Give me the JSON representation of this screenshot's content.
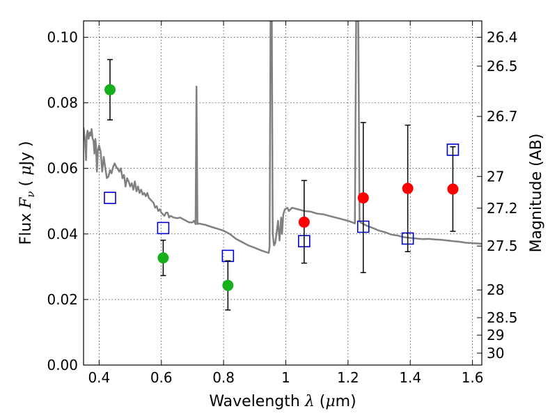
{
  "chart_data": {
    "type": "scatter",
    "xlabel": {
      "prefix": "Wavelength  ",
      "lambda": "λ",
      "unit_open": " (",
      "mu": "μ",
      "unit_close": "m)"
    },
    "ylabel": {
      "prefix": "Flux  ",
      "F": "F",
      "nu": "ν",
      "unit_open": "  ( ",
      "mu": "μ",
      "unit_close": "Jy )"
    },
    "y2label": "Magnitude (AB)",
    "xlim": [
      0.35,
      1.63
    ],
    "ylim": [
      0.0,
      0.105
    ],
    "grid": true,
    "grid_style": "dotted",
    "xticks": [
      {
        "v": 0.4,
        "label": "0.4"
      },
      {
        "v": 0.6,
        "label": "0.6"
      },
      {
        "v": 0.8,
        "label": "0.8"
      },
      {
        "v": 1.0,
        "label": "1"
      },
      {
        "v": 1.2,
        "label": "1.2"
      },
      {
        "v": 1.4,
        "label": "1.4"
      },
      {
        "v": 1.6,
        "label": "1.6"
      }
    ],
    "yticks": [
      {
        "v": 0.0,
        "label": "0.00"
      },
      {
        "v": 0.02,
        "label": "0.02"
      },
      {
        "v": 0.04,
        "label": "0.04"
      },
      {
        "v": 0.06,
        "label": "0.06"
      },
      {
        "v": 0.08,
        "label": "0.08"
      },
      {
        "v": 0.1,
        "label": "0.10"
      }
    ],
    "y2ticks": [
      {
        "label": "26.4",
        "mag": 26.4
      },
      {
        "label": "26.5",
        "mag": 26.5
      },
      {
        "label": "26.7",
        "mag": 26.7
      },
      {
        "label": "27",
        "mag": 27.0
      },
      {
        "label": "27.2",
        "mag": 27.2
      },
      {
        "label": "27.5",
        "mag": 27.5
      },
      {
        "label": "28",
        "mag": 28.0
      },
      {
        "label": "28.5",
        "mag": 28.5
      },
      {
        "label": "29",
        "mag": 29.0
      },
      {
        "label": "30",
        "mag": 30.0
      }
    ],
    "colors": {
      "model": "#808080",
      "green": "#15b01a",
      "red": "#ff0000",
      "box": "#0000cc",
      "errorbar": "#000000"
    },
    "series": [
      {
        "kind": "points",
        "color": "green",
        "points": [
          {
            "x": 0.435,
            "y": 0.084,
            "ylo": 0.0748,
            "yhi": 0.0932
          },
          {
            "x": 0.606,
            "y": 0.0327,
            "ylo": 0.0273,
            "yhi": 0.0381
          },
          {
            "x": 0.814,
            "y": 0.0243,
            "ylo": 0.0168,
            "yhi": 0.0318
          }
        ]
      },
      {
        "kind": "points",
        "color": "red",
        "points": [
          {
            "x": 1.059,
            "y": 0.0436,
            "ylo": 0.0311,
            "yhi": 0.0563
          },
          {
            "x": 1.249,
            "y": 0.051,
            "ylo": 0.0282,
            "yhi": 0.074
          },
          {
            "x": 1.392,
            "y": 0.0539,
            "ylo": 0.0346,
            "yhi": 0.0732
          },
          {
            "x": 1.537,
            "y": 0.0537,
            "ylo": 0.0408,
            "yhi": 0.0666
          }
        ]
      },
      {
        "kind": "model-photometry",
        "color": "box",
        "points": [
          {
            "x": 0.435,
            "y": 0.051
          },
          {
            "x": 0.606,
            "y": 0.0418
          },
          {
            "x": 0.814,
            "y": 0.0333
          },
          {
            "x": 1.059,
            "y": 0.0378
          },
          {
            "x": 1.249,
            "y": 0.0422
          },
          {
            "x": 1.392,
            "y": 0.0386
          },
          {
            "x": 1.537,
            "y": 0.0657
          }
        ]
      },
      {
        "kind": "model-spectrum",
        "color": "model",
        "points": [
          [
            0.35,
            0.0725
          ],
          [
            0.355,
            0.068
          ],
          [
            0.358,
            0.0625
          ],
          [
            0.36,
            0.07
          ],
          [
            0.363,
            0.0715
          ],
          [
            0.366,
            0.069
          ],
          [
            0.37,
            0.071
          ],
          [
            0.373,
            0.07
          ],
          [
            0.376,
            0.072
          ],
          [
            0.379,
            0.069
          ],
          [
            0.382,
            0.0685
          ],
          [
            0.385,
            0.0645
          ],
          [
            0.388,
            0.069
          ],
          [
            0.39,
            0.067
          ],
          [
            0.393,
            0.059
          ],
          [
            0.396,
            0.0655
          ],
          [
            0.4,
            0.067
          ],
          [
            0.405,
            0.065
          ],
          [
            0.41,
            0.059
          ],
          [
            0.415,
            0.0635
          ],
          [
            0.42,
            0.06
          ],
          [
            0.425,
            0.057
          ],
          [
            0.43,
            0.0575
          ],
          [
            0.435,
            0.0595
          ],
          [
            0.44,
            0.0585
          ],
          [
            0.445,
            0.0605
          ],
          [
            0.45,
            0.0615
          ],
          [
            0.455,
            0.0605
          ],
          [
            0.46,
            0.0598
          ],
          [
            0.465,
            0.059
          ],
          [
            0.47,
            0.06
          ],
          [
            0.475,
            0.057
          ],
          [
            0.48,
            0.058
          ],
          [
            0.485,
            0.0545
          ],
          [
            0.49,
            0.057
          ],
          [
            0.495,
            0.056
          ],
          [
            0.5,
            0.0545
          ],
          [
            0.505,
            0.0555
          ],
          [
            0.51,
            0.0535
          ],
          [
            0.515,
            0.056
          ],
          [
            0.52,
            0.053
          ],
          [
            0.525,
            0.0545
          ],
          [
            0.53,
            0.0525
          ],
          [
            0.535,
            0.0535
          ],
          [
            0.54,
            0.052
          ],
          [
            0.545,
            0.0525
          ],
          [
            0.55,
            0.0515
          ],
          [
            0.555,
            0.0525
          ],
          [
            0.56,
            0.051
          ],
          [
            0.565,
            0.0505
          ],
          [
            0.57,
            0.05
          ],
          [
            0.575,
            0.0495
          ],
          [
            0.58,
            0.048
          ],
          [
            0.585,
            0.0485
          ],
          [
            0.59,
            0.047
          ],
          [
            0.595,
            0.0475
          ],
          [
            0.6,
            0.0465
          ],
          [
            0.605,
            0.046
          ],
          [
            0.61,
            0.0455
          ],
          [
            0.615,
            0.0465
          ],
          [
            0.62,
            0.0465
          ],
          [
            0.625,
            0.045
          ],
          [
            0.63,
            0.0455
          ],
          [
            0.64,
            0.045
          ],
          [
            0.65,
            0.0448
          ],
          [
            0.66,
            0.045
          ],
          [
            0.67,
            0.0445
          ],
          [
            0.68,
            0.044
          ],
          [
            0.69,
            0.0435
          ],
          [
            0.7,
            0.0435
          ],
          [
            0.705,
            0.044
          ],
          [
            0.71,
            0.043
          ],
          [
            0.713,
            0.085
          ],
          [
            0.716,
            0.043
          ],
          [
            0.72,
            0.0432
          ],
          [
            0.74,
            0.0428
          ],
          [
            0.76,
            0.0422
          ],
          [
            0.78,
            0.0416
          ],
          [
            0.8,
            0.041
          ],
          [
            0.82,
            0.04
          ],
          [
            0.84,
            0.0385
          ],
          [
            0.86,
            0.0375
          ],
          [
            0.88,
            0.0365
          ],
          [
            0.9,
            0.0358
          ],
          [
            0.92,
            0.035
          ],
          [
            0.935,
            0.0345
          ],
          [
            0.945,
            0.0342
          ],
          [
            0.948,
            0.036
          ],
          [
            0.951,
            0.105
          ],
          [
            0.955,
            0.105
          ],
          [
            0.958,
            0.04
          ],
          [
            0.962,
            0.0365
          ],
          [
            0.966,
            0.0372
          ],
          [
            0.97,
            0.04
          ],
          [
            0.975,
            0.044
          ],
          [
            0.98,
            0.038
          ],
          [
            0.985,
            0.045
          ],
          [
            0.988,
            0.04
          ],
          [
            0.992,
            0.046
          ],
          [
            0.997,
            0.0475
          ],
          [
            1.005,
            0.048
          ],
          [
            1.01,
            0.047
          ],
          [
            1.02,
            0.048
          ],
          [
            1.04,
            0.0475
          ],
          [
            1.06,
            0.047
          ],
          [
            1.08,
            0.0468
          ],
          [
            1.1,
            0.0462
          ],
          [
            1.12,
            0.046
          ],
          [
            1.14,
            0.0455
          ],
          [
            1.16,
            0.045
          ],
          [
            1.18,
            0.0445
          ],
          [
            1.2,
            0.044
          ],
          [
            1.215,
            0.0435
          ],
          [
            1.222,
            0.0432
          ],
          [
            1.226,
            0.105
          ],
          [
            1.233,
            0.105
          ],
          [
            1.237,
            0.044
          ],
          [
            1.24,
            0.0435
          ],
          [
            1.26,
            0.0425
          ],
          [
            1.28,
            0.0418
          ],
          [
            1.3,
            0.041
          ],
          [
            1.32,
            0.0405
          ],
          [
            1.34,
            0.0398
          ],
          [
            1.36,
            0.0395
          ],
          [
            1.38,
            0.039
          ],
          [
            1.4,
            0.0388
          ],
          [
            1.42,
            0.0386
          ],
          [
            1.44,
            0.0384
          ],
          [
            1.46,
            0.0385
          ],
          [
            1.48,
            0.0383
          ],
          [
            1.5,
            0.0382
          ],
          [
            1.52,
            0.038
          ],
          [
            1.54,
            0.0378
          ],
          [
            1.56,
            0.0376
          ],
          [
            1.58,
            0.0373
          ],
          [
            1.6,
            0.0372
          ],
          [
            1.63,
            0.037
          ]
        ]
      }
    ]
  }
}
